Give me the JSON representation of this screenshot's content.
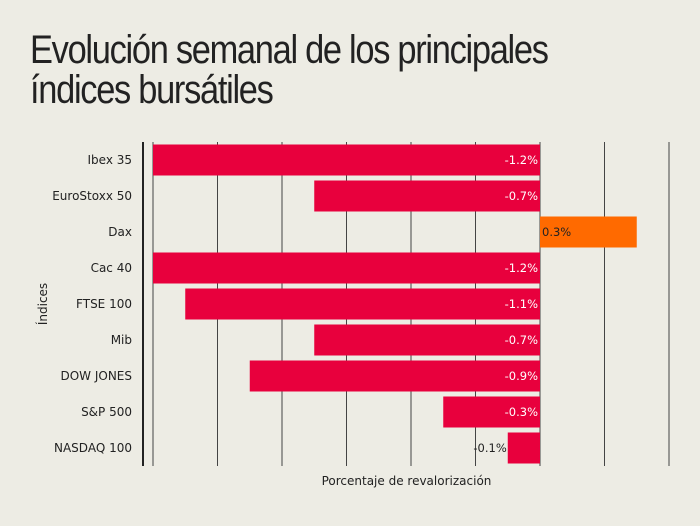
{
  "chart_data": {
    "type": "bar",
    "orientation": "horizontal",
    "title": "Evolución semanal de los principales índices bursátiles",
    "xlabel": "Porcentaje de revalorización",
    "ylabel": "Índices",
    "categories": [
      "Ibex 35",
      "EuroStoxx 50",
      "Dax",
      "Cac 40",
      "FTSE 100",
      "Mib",
      "DOW JONES",
      "S&P 500",
      "NASDAQ 100"
    ],
    "values": [
      -1.2,
      -0.7,
      0.3,
      -1.2,
      -1.1,
      -0.7,
      -0.9,
      -0.3,
      -0.1
    ],
    "value_labels": [
      "-1.2%",
      "-0.7%",
      "0.3%",
      "-1.2%",
      "-1.1%",
      "-0.7%",
      "-0.9%",
      "-0.3%",
      "-0.1%"
    ],
    "xlim": [
      -1.2,
      0.4
    ],
    "grid": true,
    "legend": "none",
    "colors": {
      "negative": "#e8003d",
      "positive": "#ff6a00",
      "background": "#edece4",
      "grid": "#444444"
    }
  }
}
